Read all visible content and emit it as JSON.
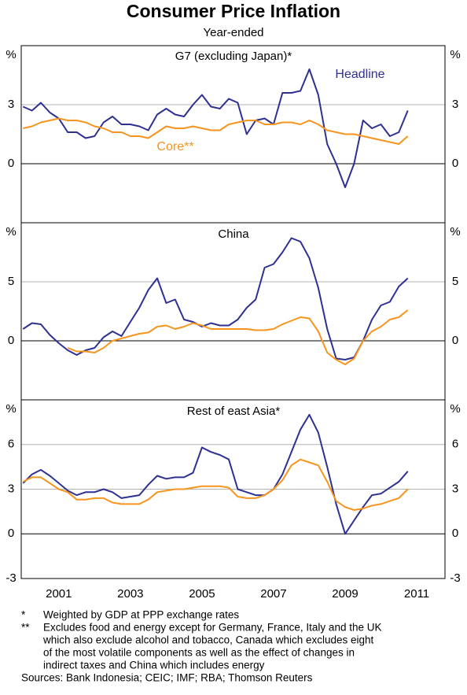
{
  "title": "Consumer Price Inflation",
  "subtitle": "Year-ended",
  "chart_data": [
    {
      "type": "line",
      "title": "G7 (excluding Japan)*",
      "unit": "%",
      "x": [
        2000.5,
        2000.75,
        2001,
        2001.25,
        2001.5,
        2001.75,
        2002,
        2002.25,
        2002.5,
        2002.75,
        2003,
        2003.25,
        2003.5,
        2003.75,
        2004,
        2004.25,
        2004.5,
        2004.75,
        2005,
        2005.25,
        2005.5,
        2005.75,
        2006,
        2006.25,
        2006.5,
        2006.75,
        2007,
        2007.25,
        2007.5,
        2007.75,
        2008,
        2008.25,
        2008.5,
        2008.75,
        2009,
        2009.25,
        2009.5,
        2009.75,
        2010,
        2010.25,
        2010.5,
        2010.75,
        2011,
        2011.25
      ],
      "xlim": [
        2000.45,
        2012.29
      ],
      "ylim": [
        -3,
        6
      ],
      "yticks": [
        0,
        3
      ],
      "series": [
        {
          "name": "Headline",
          "color": "#2e3192",
          "values": [
            2.9,
            2.7,
            3.1,
            2.6,
            2.3,
            1.6,
            1.6,
            1.3,
            1.4,
            2.1,
            2.4,
            2.0,
            2.0,
            1.9,
            1.7,
            2.5,
            2.8,
            2.5,
            2.4,
            3.0,
            3.5,
            2.9,
            2.8,
            3.3,
            3.1,
            1.5,
            2.2,
            2.3,
            2.0,
            3.6,
            3.6,
            3.7,
            4.8,
            3.5,
            1.0,
            0.0,
            -1.2,
            0.0,
            2.2,
            1.8,
            2.0,
            1.4,
            1.6,
            2.7
          ]
        },
        {
          "name": "Core**",
          "color": "#f7941d",
          "values": [
            1.8,
            1.9,
            2.1,
            2.2,
            2.3,
            2.2,
            2.2,
            2.1,
            1.9,
            1.8,
            1.6,
            1.6,
            1.4,
            1.4,
            1.3,
            1.6,
            1.9,
            1.8,
            1.8,
            1.9,
            1.8,
            1.7,
            1.7,
            2.0,
            2.1,
            2.2,
            2.2,
            2.0,
            2.0,
            2.1,
            2.1,
            2.0,
            2.2,
            2.0,
            1.7,
            1.6,
            1.5,
            1.5,
            1.4,
            1.3,
            1.2,
            1.1,
            1.0,
            1.4
          ]
        }
      ]
    },
    {
      "type": "line",
      "title": "China",
      "unit": "%",
      "x": [
        2000.5,
        2000.75,
        2001,
        2001.25,
        2001.5,
        2001.75,
        2002,
        2002.25,
        2002.5,
        2002.75,
        2003,
        2003.25,
        2003.5,
        2003.75,
        2004,
        2004.25,
        2004.5,
        2004.75,
        2005,
        2005.25,
        2005.5,
        2005.75,
        2006,
        2006.25,
        2006.5,
        2006.75,
        2007,
        2007.25,
        2007.5,
        2007.75,
        2008,
        2008.25,
        2008.5,
        2008.75,
        2009,
        2009.25,
        2009.5,
        2009.75,
        2010,
        2010.25,
        2010.5,
        2010.75,
        2011,
        2011.25
      ],
      "xlim": [
        2000.45,
        2012.29
      ],
      "ylim": [
        -5,
        10
      ],
      "yticks": [
        0,
        5
      ],
      "series": [
        {
          "color": "#2e3192",
          "values": [
            1.0,
            1.5,
            1.4,
            0.5,
            -0.2,
            -0.8,
            -1.2,
            -0.8,
            -0.6,
            0.3,
            0.8,
            0.4,
            1.6,
            2.8,
            4.3,
            5.3,
            3.2,
            3.5,
            1.8,
            1.6,
            1.2,
            1.5,
            1.3,
            1.3,
            1.8,
            2.8,
            3.5,
            6.2,
            6.5,
            7.5,
            8.7,
            8.4,
            7.0,
            4.5,
            1.0,
            -1.5,
            -1.6,
            -1.4,
            0.0,
            1.8,
            3.0,
            3.3,
            4.6,
            5.3
          ]
        },
        {
          "color": "#f7941d",
          "values": [
            null,
            null,
            null,
            null,
            null,
            -0.6,
            -0.9,
            -0.9,
            -1.0,
            -0.6,
            0.0,
            0.2,
            0.4,
            0.6,
            0.7,
            1.2,
            1.3,
            1.0,
            1.2,
            1.5,
            1.3,
            1.0,
            1.0,
            1.0,
            1.0,
            1.0,
            0.9,
            0.9,
            1.0,
            1.4,
            1.7,
            2.0,
            1.9,
            0.8,
            -1.0,
            -1.6,
            -2.0,
            -1.5,
            0.0,
            0.8,
            1.2,
            1.8,
            2.0,
            2.6
          ]
        }
      ]
    },
    {
      "type": "line",
      "title": "Rest of east Asia*",
      "unit": "%",
      "x": [
        2000.5,
        2000.75,
        2001,
        2001.25,
        2001.5,
        2001.75,
        2002,
        2002.25,
        2002.5,
        2002.75,
        2003,
        2003.25,
        2003.5,
        2003.75,
        2004,
        2004.25,
        2004.5,
        2004.75,
        2005,
        2005.25,
        2005.5,
        2005.75,
        2006,
        2006.25,
        2006.5,
        2006.75,
        2007,
        2007.25,
        2007.5,
        2007.75,
        2008,
        2008.25,
        2008.5,
        2008.75,
        2009,
        2009.25,
        2009.5,
        2009.75,
        2010,
        2010.25,
        2010.5,
        2010.75,
        2011,
        2011.25
      ],
      "xlim": [
        2000.45,
        2012.29
      ],
      "ylim": [
        -3,
        9
      ],
      "yticks": [
        -3,
        0,
        3,
        6
      ],
      "xticks": [
        {
          "value": 2001.5,
          "label": "2001"
        },
        {
          "value": 2003.5,
          "label": "2003"
        },
        {
          "value": 2005.5,
          "label": "2005"
        },
        {
          "value": 2007.5,
          "label": "2007"
        },
        {
          "value": 2009.5,
          "label": "2009"
        },
        {
          "value": 2011.5,
          "label": "2011"
        }
      ],
      "series": [
        {
          "color": "#2e3192",
          "values": [
            3.4,
            4.0,
            4.3,
            3.9,
            3.4,
            2.9,
            2.6,
            2.8,
            2.8,
            3.0,
            2.8,
            2.4,
            2.5,
            2.6,
            3.3,
            3.9,
            3.7,
            3.8,
            3.8,
            4.1,
            5.8,
            5.5,
            5.3,
            5.0,
            3.0,
            2.8,
            2.6,
            2.6,
            3.0,
            4.0,
            5.5,
            7.0,
            8.0,
            6.8,
            4.5,
            2.0,
            0.0,
            0.9,
            1.8,
            2.6,
            2.7,
            3.1,
            3.5,
            4.2
          ]
        },
        {
          "color": "#f7941d",
          "values": [
            3.5,
            3.8,
            3.8,
            3.4,
            3.0,
            2.8,
            2.3,
            2.3,
            2.4,
            2.4,
            2.1,
            2.0,
            2.0,
            2.0,
            2.3,
            2.8,
            2.9,
            3.0,
            3.0,
            3.1,
            3.2,
            3.2,
            3.2,
            3.1,
            2.5,
            2.4,
            2.4,
            2.6,
            3.0,
            3.6,
            4.6,
            5.0,
            4.8,
            4.6,
            3.5,
            2.2,
            1.8,
            1.6,
            1.7,
            1.9,
            2.0,
            2.2,
            2.4,
            3.0
          ]
        }
      ]
    }
  ],
  "notes": [
    {
      "marker": "*",
      "lines": [
        "Weighted by GDP at PPP exchange rates"
      ]
    },
    {
      "marker": "**",
      "lines": [
        "Excludes food and energy except for Germany, France, Italy and the UK",
        "which also exclude alcohol and tobacco, Canada which excludes eight",
        "of the most volatile components as well as the effect of changes in",
        "indirect taxes and China which includes energy"
      ]
    }
  ],
  "sources": "Sources: Bank Indonesia; CEIC; IMF; RBA; Thomson Reuters"
}
